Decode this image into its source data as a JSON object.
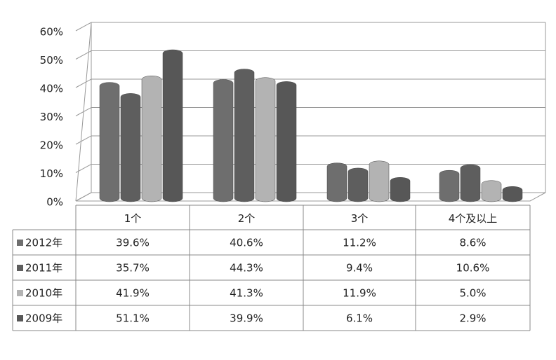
{
  "chart_data": {
    "type": "bar",
    "categories": [
      "1个",
      "2个",
      "3个",
      "4个及以上"
    ],
    "series": [
      {
        "name": "2012年",
        "color": "#6e6e6e",
        "values": [
          39.6,
          40.6,
          11.2,
          8.6
        ],
        "value_labels": [
          "39.6%",
          "40.6%",
          "11.2%",
          "8.6%"
        ]
      },
      {
        "name": "2011年",
        "color": "#5e5e5e",
        "values": [
          35.7,
          44.3,
          9.4,
          10.6
        ],
        "value_labels": [
          "35.7%",
          "44.3%",
          "9.4%",
          "10.6%"
        ]
      },
      {
        "name": "2010年",
        "color": "#b3b3b3",
        "values": [
          41.9,
          41.3,
          11.9,
          5.0
        ],
        "value_labels": [
          "41.9%",
          "41.3%",
          "11.9%",
          "5.0%"
        ]
      },
      {
        "name": "2009年",
        "color": "#575757",
        "values": [
          51.1,
          39.9,
          6.1,
          2.9
        ],
        "value_labels": [
          "51.1%",
          "39.9%",
          "6.1%",
          "2.9%"
        ]
      }
    ],
    "ylim": [
      0,
      60
    ],
    "yticks": [
      {
        "value": 0,
        "label": "0%"
      },
      {
        "value": 10,
        "label": "10%"
      },
      {
        "value": 20,
        "label": "20%"
      },
      {
        "value": 30,
        "label": "30%"
      },
      {
        "value": 40,
        "label": "40%"
      },
      {
        "value": 50,
        "label": "50%"
      },
      {
        "value": 60,
        "label": "60%"
      }
    ],
    "grid": true
  }
}
